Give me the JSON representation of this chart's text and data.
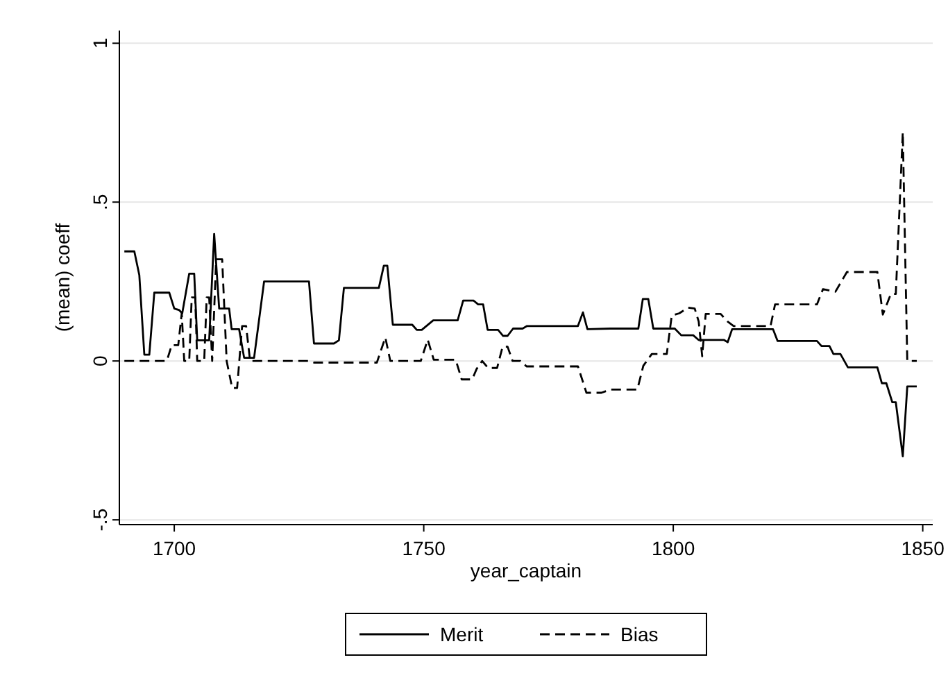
{
  "chart_data": {
    "type": "line",
    "xlabel": "year_captain",
    "ylabel": "(mean) coeff",
    "xlim": [
      1689,
      1852
    ],
    "xticks": [
      1700,
      1750,
      1800,
      1850
    ],
    "ylim": [
      -0.515,
      1.04
    ],
    "yticks": [
      {
        "value": -0.5,
        "label": "-.5"
      },
      {
        "value": 0,
        "label": "0"
      },
      {
        "value": 0.5,
        "label": ".5"
      },
      {
        "value": 1,
        "label": "1"
      }
    ],
    "grid": "y",
    "legend": "bottom",
    "series": [
      {
        "name": "Merit",
        "color": "#000000",
        "line_style": "solid",
        "x": [
          1690,
          1692,
          1693,
          1694,
          1695,
          1696,
          1699,
          1700,
          1701,
          1701.6,
          1703,
          1704,
          1704.6,
          1707,
          1708,
          1709,
          1711,
          1711.5,
          1713,
          1714,
          1716,
          1718,
          1727,
          1728,
          1732,
          1733,
          1734,
          1741,
          1742,
          1742.7,
          1743.8,
          1747.7,
          1748.6,
          1749.6,
          1751.9,
          1756.8,
          1757.9,
          1760,
          1760.9,
          1761.9,
          1762.8,
          1764.9,
          1765.9,
          1766.8,
          1767.9,
          1769.8,
          1770.7,
          1780.9,
          1781.9,
          1782.8,
          1787.4,
          1793,
          1793.9,
          1795,
          1796,
          1800.3,
          1801.6,
          1804,
          1805.1,
          1810.2,
          1810.9,
          1811.8,
          1820,
          1820.9,
          1828.8,
          1829.7,
          1831.3,
          1832.1,
          1833.5,
          1835,
          1840.9,
          1841.8,
          1842.7,
          1843.9,
          1844.6,
          1846,
          1846.9,
          1848.8
        ],
        "values": [
          0.345,
          0.345,
          0.27,
          0.02,
          0.02,
          0.215,
          0.215,
          0.165,
          0.16,
          0.15,
          0.275,
          0.275,
          0.065,
          0.065,
          0.4,
          0.165,
          0.165,
          0.1,
          0.1,
          0.01,
          0.01,
          0.25,
          0.25,
          0.055,
          0.055,
          0.065,
          0.23,
          0.23,
          0.3,
          0.3,
          0.114,
          0.114,
          0.098,
          0.098,
          0.128,
          0.128,
          0.19,
          0.19,
          0.178,
          0.178,
          0.098,
          0.098,
          0.079,
          0.079,
          0.102,
          0.102,
          0.11,
          0.11,
          0.153,
          0.1,
          0.102,
          0.102,
          0.195,
          0.195,
          0.102,
          0.102,
          0.081,
          0.081,
          0.066,
          0.066,
          0.059,
          0.1,
          0.1,
          0.063,
          0.063,
          0.047,
          0.047,
          0.022,
          0.022,
          -0.02,
          -0.02,
          -0.07,
          -0.07,
          -0.13,
          -0.13,
          -0.3,
          -0.08,
          -0.08
        ]
      },
      {
        "name": "Bias",
        "color": "#000000",
        "line_style": "dashed",
        "x": [
          1690,
          1698.5,
          1699.5,
          1700.8,
          1701.5,
          1702,
          1703,
          1703.5,
          1704.2,
          1704.6,
          1706,
          1706.5,
          1707,
          1707.6,
          1708.4,
          1709.6,
          1710.5,
          1711.6,
          1712.6,
          1713.6,
          1714.4,
          1715.2,
          1727,
          1728,
          1740.6,
          1742.3,
          1743.3,
          1749.4,
          1750.8,
          1752,
          1756.4,
          1757.6,
          1759.7,
          1760.6,
          1761.7,
          1762.9,
          1764.7,
          1765.8,
          1766.8,
          1767.8,
          1769.4,
          1770.6,
          1780.9,
          1782.6,
          1785.6,
          1787.4,
          1792.8,
          1794,
          1795.7,
          1798.7,
          1799.7,
          1801.2,
          1803,
          1804.3,
          1805.1,
          1805.8,
          1806.5,
          1809.5,
          1810.9,
          1812.1,
          1819.5,
          1820.4,
          1828.8,
          1830,
          1832.5,
          1834.8,
          1840.9,
          1842,
          1843.6,
          1844.6,
          1846,
          1846.9,
          1848.8
        ],
        "values": [
          0,
          0,
          0.05,
          0.05,
          0.15,
          0,
          0,
          0.2,
          0.2,
          0,
          0,
          0.2,
          0.2,
          0,
          0.32,
          0.32,
          0,
          -0.085,
          -0.085,
          0.11,
          0.11,
          0,
          0,
          -0.005,
          -0.005,
          0.074,
          0,
          0,
          0.067,
          0.004,
          0.004,
          -0.058,
          -0.058,
          -0.025,
          0,
          -0.022,
          -0.022,
          0.045,
          0.045,
          0,
          0,
          -0.017,
          -0.017,
          -0.1,
          -0.1,
          -0.09,
          -0.09,
          -0.015,
          0.022,
          0.022,
          0.143,
          0.15,
          0.168,
          0.165,
          0.124,
          0.015,
          0.148,
          0.148,
          0.124,
          0.11,
          0.11,
          0.178,
          0.178,
          0.226,
          0.218,
          0.28,
          0.28,
          0.146,
          0.211,
          0.211,
          0.72,
          0,
          0
        ]
      }
    ]
  }
}
